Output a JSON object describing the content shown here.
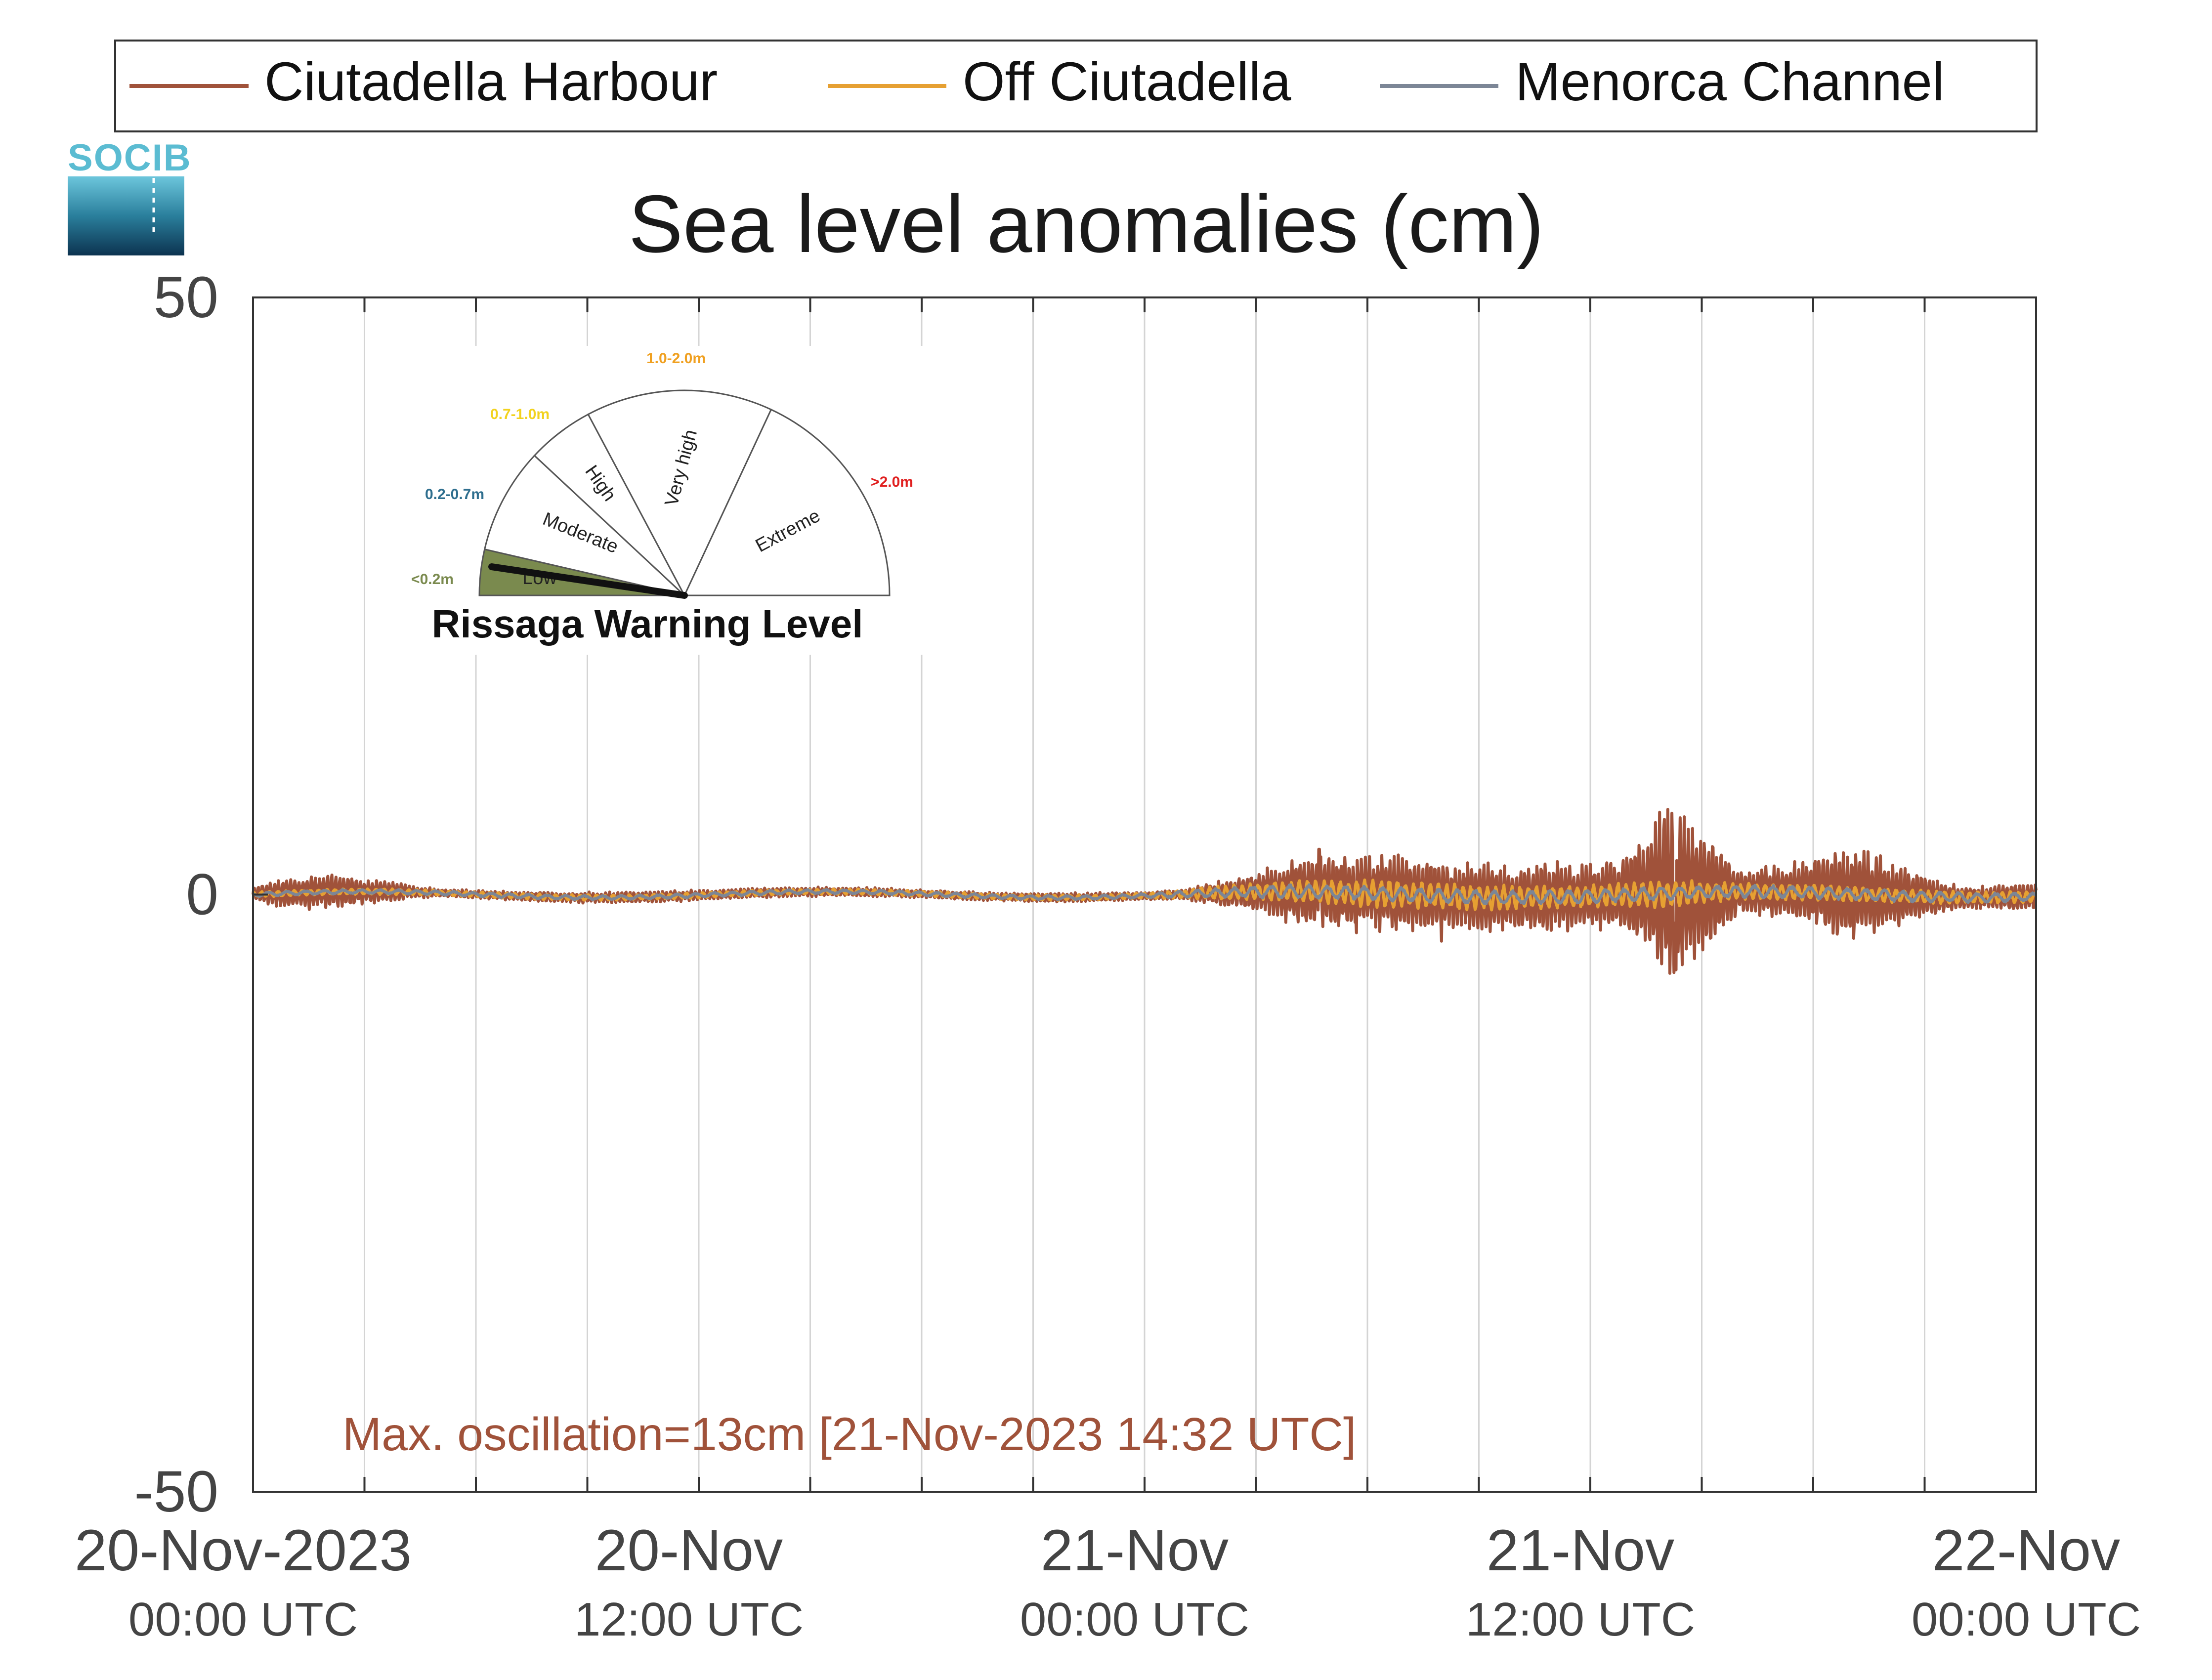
{
  "title": "Sea level anomalies (cm)",
  "logo": {
    "text": "SOCIB"
  },
  "legend": {
    "placement": "top",
    "items": [
      {
        "label": "Ciutadella Harbour",
        "color": "#a0523a"
      },
      {
        "label": "Off Ciutadella",
        "color": "#e6a032"
      },
      {
        "label": "Menorca Channel",
        "color": "#7c8696"
      }
    ]
  },
  "annotation": {
    "text": "Max. oscillation=13cm [21-Nov-2023 14:32 UTC]",
    "color": "#a0523a"
  },
  "gauge": {
    "title": "Rissaga Warning Level",
    "needle_value": 0.13,
    "needle_unit": "m",
    "levels": [
      {
        "name": "Low",
        "range": "<0.2m",
        "color": "#7a8a4e"
      },
      {
        "name": "Moderate",
        "range": "0.2-0.7m",
        "color": "#2e6e8e"
      },
      {
        "name": "High",
        "range": "0.7-1.0m",
        "color": "#f2d21e"
      },
      {
        "name": "Very high",
        "range": "1.0-2.0m",
        "color": "#f0a020"
      },
      {
        "name": "Extreme",
        "range": ">2.0m",
        "color": "#e02020"
      }
    ]
  },
  "chart_data": {
    "type": "line",
    "title": "Sea level anomalies (cm)",
    "xlabel": "",
    "ylabel": "",
    "x_range_hours": [
      0,
      48
    ],
    "x_start": "20-Nov-2023 00:00 UTC",
    "x_ticks": [
      {
        "label": "20-Nov-2023",
        "sub": "00:00 UTC",
        "hour": 0
      },
      {
        "label": "20-Nov",
        "sub": "12:00 UTC",
        "hour": 12
      },
      {
        "label": "21-Nov",
        "sub": "00:00 UTC",
        "hour": 24
      },
      {
        "label": "21-Nov",
        "sub": "12:00 UTC",
        "hour": 36
      },
      {
        "label": "22-Nov",
        "sub": "00:00 UTC",
        "hour": 48
      }
    ],
    "y_ticks": [
      "50",
      "0",
      "-50"
    ],
    "ylim": [
      -50,
      50
    ],
    "vertical_grid_hours": [
      3,
      6,
      9,
      12,
      15,
      18,
      21,
      24,
      27,
      30,
      33,
      36,
      39,
      42,
      45
    ],
    "grid": "vertical",
    "series": [
      {
        "name": "Ciutadella Harbour",
        "color": "#a0523a",
        "amplitude_envelope": {
          "hours": [
            0,
            1,
            2,
            4,
            5,
            6,
            9,
            12,
            15,
            18,
            20,
            22,
            24,
            25,
            26,
            27,
            28,
            29,
            30,
            31,
            32,
            33,
            34,
            35,
            36,
            37,
            38,
            39,
            40,
            41,
            42,
            43,
            44,
            45,
            46,
            47,
            48
          ],
          "values": [
            0.5,
            1.2,
            1.3,
            0.6,
            0.3,
            0.3,
            0.4,
            0.4,
            0.35,
            0.3,
            0.3,
            0.35,
            0.3,
            0.4,
            0.9,
            1.4,
            2.4,
            2.8,
            2.6,
            3.0,
            2.2,
            2.5,
            2.3,
            2.6,
            2.3,
            3.0,
            6.2,
            5.0,
            1.6,
            1.9,
            2.5,
            3.5,
            2.6,
            1.5,
            0.9,
            0.9,
            1.0
          ],
          "peaks": [
            {
              "hour": 28.7,
              "value": 3.8
            },
            {
              "hour": 29.7,
              "value": -3.2
            },
            {
              "hour": 32.0,
              "value": -3.9
            },
            {
              "hour": 38.0,
              "value": 6.3
            },
            {
              "hour": 38.3,
              "value": -6.3
            }
          ]
        }
      },
      {
        "name": "Off Ciutadella",
        "color": "#e6a032",
        "amplitude_envelope": {
          "hours": [
            0,
            24,
            26,
            30,
            36,
            38,
            40,
            44,
            48
          ],
          "values": [
            0.2,
            0.2,
            0.5,
            1.0,
            0.8,
            1.0,
            0.6,
            0.5,
            0.4
          ]
        }
      },
      {
        "name": "Menorca Channel",
        "color": "#7c8696",
        "amplitude_envelope": {
          "hours": [
            0,
            24,
            28,
            36,
            44,
            48
          ],
          "values": [
            0.15,
            0.15,
            0.5,
            0.5,
            0.4,
            0.3
          ]
        }
      }
    ]
  }
}
